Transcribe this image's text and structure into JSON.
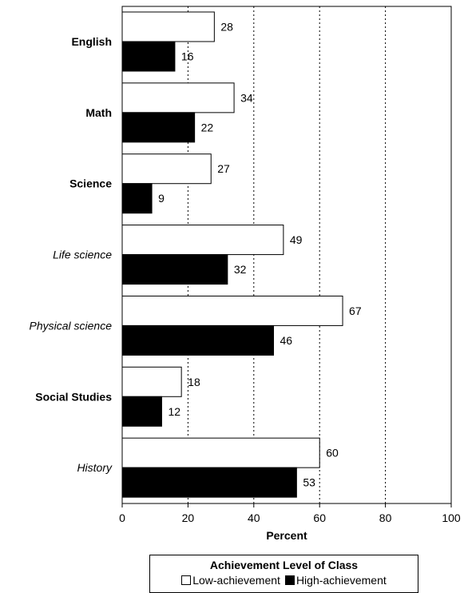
{
  "chart_data": {
    "type": "bar",
    "orientation": "horizontal",
    "categories": [
      "English",
      "Math",
      "Science",
      "Life science",
      "Physical science",
      "Social Studies",
      "History"
    ],
    "category_styles": [
      "bold",
      "bold",
      "bold",
      "italic",
      "italic",
      "bold",
      "italic"
    ],
    "series": [
      {
        "name": "Low-achievement",
        "values": [
          28,
          34,
          27,
          49,
          67,
          18,
          60
        ],
        "color": "#ffffff"
      },
      {
        "name": "High-achievement",
        "values": [
          16,
          22,
          9,
          32,
          46,
          12,
          53
        ],
        "color": "#000000"
      }
    ],
    "xlabel": "Percent",
    "xlim": [
      0,
      100
    ],
    "xticks": [
      0,
      20,
      40,
      60,
      80,
      100
    ],
    "grid": "vertical dotted",
    "legend": {
      "title": "Achievement Level of Class",
      "placement": "bottom-center"
    }
  }
}
